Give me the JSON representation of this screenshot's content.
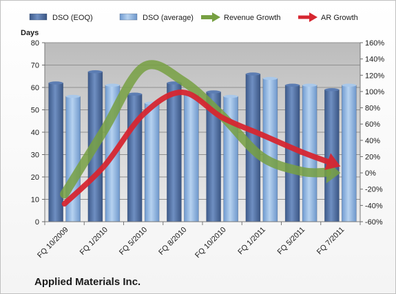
{
  "chart_data": {
    "type": "bar",
    "title": "Applied Materials Inc.",
    "ylabel": "Days",
    "categories": [
      "FQ 10/2009",
      "FQ 1/2010",
      "FQ 5/2010",
      "FQ 8/2010",
      "FQ 10/2010",
      "FQ 1/2011",
      "FQ 5/2011",
      "FQ 7/2011"
    ],
    "series": [
      {
        "name": "DSO (EOQ)",
        "type": "bar",
        "axis": "left",
        "color": "#4f6fa3",
        "values": [
          62,
          67,
          57,
          62,
          58,
          66,
          61,
          59
        ]
      },
      {
        "name": "DSO (average)",
        "type": "bar",
        "axis": "left",
        "color": "#8db4e2",
        "values": [
          56,
          61,
          53,
          57,
          56,
          64,
          61,
          61
        ]
      },
      {
        "name": "Revenue Growth",
        "type": "line",
        "axis": "right",
        "color": "#77a042",
        "values": [
          -26,
          52,
          130,
          113,
          70,
          20,
          2,
          0
        ]
      },
      {
        "name": "AR Growth",
        "type": "line",
        "axis": "right",
        "color": "#d62630",
        "values": [
          -38,
          8,
          72,
          99,
          68,
          47,
          26,
          8
        ]
      }
    ],
    "ylim": [
      0,
      80
    ],
    "yticks": [
      0,
      10,
      20,
      30,
      40,
      50,
      60,
      70,
      80
    ],
    "y2lim": [
      -60,
      160
    ],
    "y2ticks": [
      "-60%",
      "-40%",
      "-20%",
      "0%",
      "20%",
      "40%",
      "60%",
      "80%",
      "100%",
      "120%",
      "140%",
      "160%"
    ],
    "grid": true,
    "legend": "top"
  }
}
